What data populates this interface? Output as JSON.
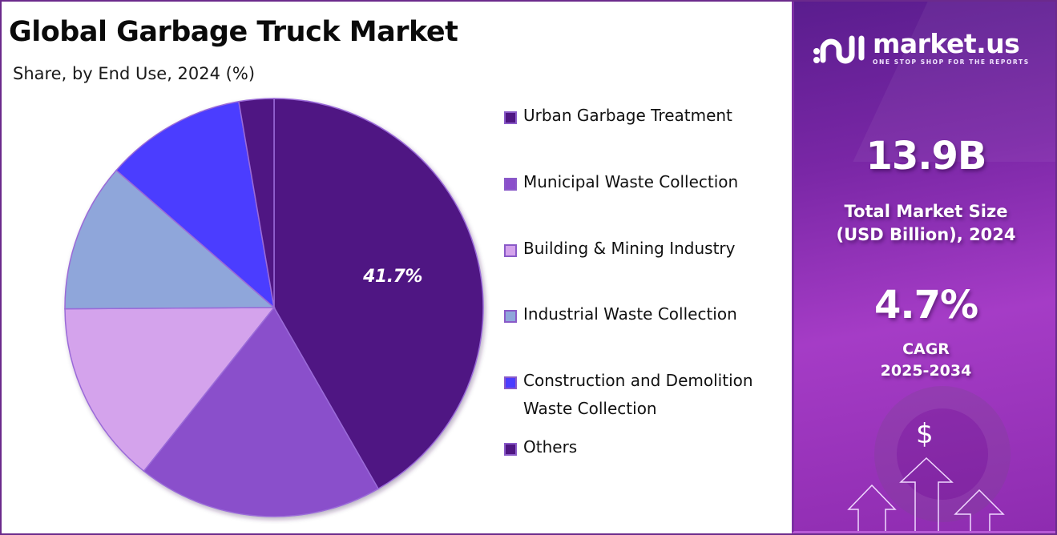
{
  "header": {
    "title": "Global Garbage Truck Market",
    "subtitle": "Share, by End Use, 2024 (%)"
  },
  "chart_data": {
    "type": "pie",
    "title": "Global Garbage Truck Market",
    "subtitle": "Share, by End Use, 2024 (%)",
    "categories": [
      "Urban Garbage Treatment",
      "Municipal Waste Collection",
      "Building & Mining Industry",
      "Industrial Waste Collection",
      "Construction and Demolition Waste Collection",
      "Others"
    ],
    "values": [
      41.7,
      19.0,
      14.2,
      11.5,
      10.9,
      2.7
    ],
    "colors": [
      "#4f1683",
      "#8a4fcb",
      "#d4a3ec",
      "#8fa6da",
      "#4b3cff",
      "#4f1683"
    ],
    "data_labels": [
      {
        "category": "Urban Garbage Treatment",
        "text": "41.7%"
      }
    ],
    "start_angle_deg": 0,
    "direction": "clockwise",
    "legend_position": "right"
  },
  "pie": {
    "highlight_label": "41.7%"
  },
  "legend": {
    "items": [
      {
        "label": "Urban Garbage Treatment",
        "color": "#4f1683"
      },
      {
        "label": "Municipal Waste Collection",
        "color": "#8a4fcb"
      },
      {
        "label": "Building & Mining Industry",
        "color": "#d4a3ec"
      },
      {
        "label": "Industrial Waste Collection",
        "color": "#8fa6da"
      },
      {
        "label": "Construction and Demolition",
        "label_line2": "Waste Collection",
        "color": "#4b3cff"
      },
      {
        "label": "Others",
        "color": "#4f1683"
      }
    ]
  },
  "sidebar": {
    "brand_name": "market.us",
    "brand_tagline": "ONE STOP SHOP FOR THE REPORTS",
    "market_size_value": "13.9B",
    "market_size_label_1": "Total Market Size",
    "market_size_label_2": "(USD Billion), 2024",
    "cagr_value": "4.7%",
    "cagr_label": "CAGR",
    "cagr_period": "2025-2034",
    "dollar_symbol": "$"
  }
}
